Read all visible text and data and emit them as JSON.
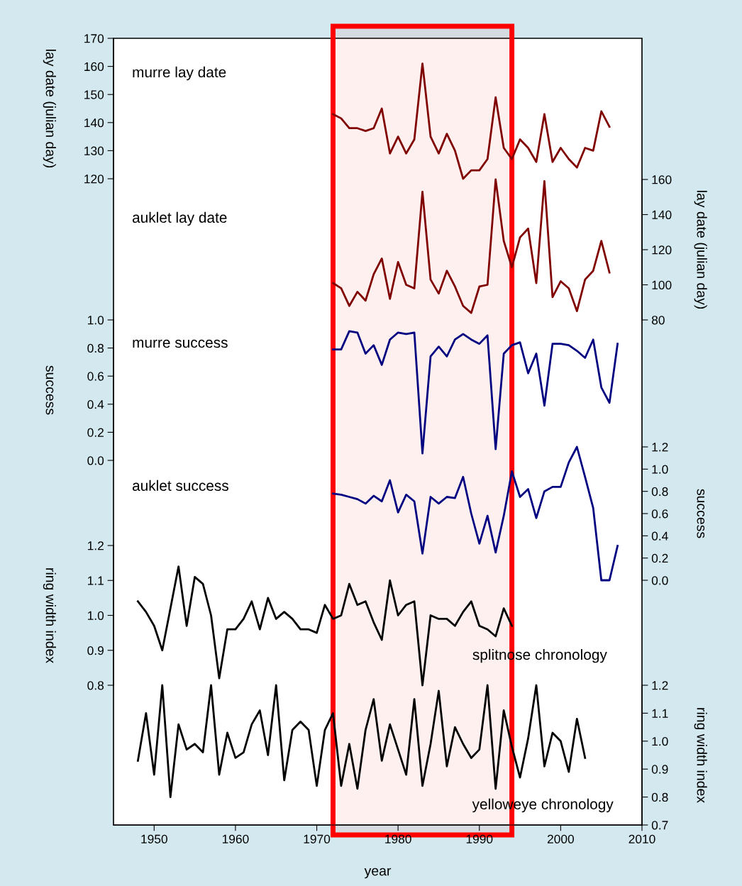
{
  "chart_data": [
    {
      "type": "line",
      "ylabel": "lay date (julian day)",
      "annotations": [
        "murre lay date"
      ],
      "color": "#800000",
      "xlim": [
        1945,
        2010
      ],
      "ylim": [
        120,
        170
      ],
      "yticks": [
        120,
        130,
        140,
        150,
        160,
        170
      ],
      "tick_labels": "y",
      "x": [
        1972,
        1973,
        1974,
        1975,
        1976,
        1977,
        1978,
        1979,
        1980,
        1981,
        1982,
        1983,
        1984,
        1985,
        1986,
        1987,
        1988,
        1989,
        1990,
        1991,
        1992,
        1993,
        1994,
        1995,
        1996,
        1997,
        1998,
        1999,
        2000,
        2001,
        2002,
        2003,
        2004,
        2005,
        2006
      ],
      "values": [
        143,
        141.5,
        138,
        138,
        137,
        138,
        145,
        129,
        135,
        129,
        134,
        161,
        135,
        129,
        136,
        130,
        120,
        123,
        123,
        127,
        149,
        131,
        127,
        134,
        131,
        126,
        143,
        126,
        131,
        127,
        124,
        131,
        130,
        144,
        138.5
      ]
    },
    {
      "type": "line",
      "ylabel": "lay date (julian day)",
      "annotations": [
        "auklet lay date"
      ],
      "color": "#800000",
      "xlim": [
        1945,
        2010
      ],
      "ylim": [
        80,
        160
      ],
      "yticks": [
        80,
        100,
        120,
        140,
        160
      ],
      "tick_labels": "y",
      "x": [
        1972,
        1973,
        1974,
        1975,
        1976,
        1977,
        1978,
        1979,
        1980,
        1981,
        1982,
        1983,
        1984,
        1985,
        1986,
        1987,
        1988,
        1989,
        1990,
        1991,
        1992,
        1993,
        1994,
        1995,
        1996,
        1997,
        1998,
        1999,
        2000,
        2001,
        2002,
        2003,
        2004,
        2005,
        2006
      ],
      "values": [
        101,
        98,
        88,
        96,
        91,
        106,
        115,
        92,
        113,
        100,
        98,
        153,
        103,
        95,
        108,
        99,
        88,
        84,
        99,
        100,
        160,
        125,
        110,
        127,
        132,
        101,
        159,
        93,
        102,
        98,
        85,
        103,
        108,
        125,
        107
      ]
    },
    {
      "type": "line",
      "ylabel": "success",
      "annotations": [
        "murre success"
      ],
      "color": "#000080",
      "xlim": [
        1945,
        2010
      ],
      "ylim": [
        0,
        1
      ],
      "yticks": [
        {
          "value": 0,
          "label": "0.0"
        },
        0.2,
        0.4,
        0.6,
        0.8,
        {
          "value": 1,
          "label": "1.0"
        }
      ],
      "tick_labels": "y",
      "x": [
        1972,
        1973,
        1974,
        1975,
        1976,
        1977,
        1978,
        1979,
        1980,
        1981,
        1982,
        1983,
        1984,
        1985,
        1986,
        1987,
        1988,
        1989,
        1990,
        1991,
        1992,
        1993,
        1994,
        1995,
        1996,
        1997,
        1998,
        1999,
        2000,
        2001,
        2002,
        2003,
        2004,
        2005,
        2006,
        2007
      ],
      "values": [
        0.79,
        0.79,
        0.92,
        0.91,
        0.76,
        0.82,
        0.68,
        0.86,
        0.91,
        0.9,
        0.91,
        0.05,
        0.74,
        0.81,
        0.74,
        0.86,
        0.9,
        0.86,
        0.83,
        0.89,
        0.08,
        0.76,
        0.82,
        0.84,
        0.62,
        0.76,
        0.39,
        0.83,
        0.83,
        0.82,
        0.78,
        0.73,
        0.86,
        0.52,
        0.41,
        0.83
      ]
    },
    {
      "type": "line",
      "ylabel": "success",
      "annotations": [
        "auklet success"
      ],
      "color": "#000080",
      "xlim": [
        1945,
        2010
      ],
      "ylim": [
        0,
        1.2
      ],
      "yticks": [
        {
          "value": 0,
          "label": "0.0"
        },
        0.2,
        0.4,
        0.6,
        0.8,
        {
          "value": 1,
          "label": "1.0"
        },
        1.2
      ],
      "tick_labels": "y",
      "x": [
        1972,
        1973,
        1974,
        1975,
        1976,
        1977,
        1978,
        1979,
        1980,
        1981,
        1982,
        1983,
        1984,
        1985,
        1986,
        1987,
        1988,
        1989,
        1990,
        1991,
        1992,
        1993,
        1994,
        1995,
        1996,
        1997,
        1998,
        1999,
        2000,
        2001,
        2002,
        2003,
        2004,
        2005,
        2006,
        2007
      ],
      "values": [
        0.78,
        0.77,
        0.75,
        0.73,
        0.69,
        0.76,
        0.71,
        0.9,
        0.61,
        0.77,
        0.71,
        0.24,
        0.75,
        0.69,
        0.75,
        0.74,
        0.93,
        0.6,
        0.33,
        0.58,
        0.25,
        0.58,
        0.98,
        0.75,
        0.82,
        0.56,
        0.8,
        0.84,
        0.84,
        1.06,
        1.2,
        0.93,
        0.65,
        0,
        0,
        0.31
      ]
    },
    {
      "type": "line",
      "ylabel": "ring width index",
      "annotations": [
        "splitnose chronology"
      ],
      "color": "#000000",
      "xlim": [
        1945,
        2010
      ],
      "ylim": [
        0.8,
        1.2
      ],
      "yticks": [
        0.8,
        0.9,
        {
          "value": 1,
          "label": "1.0"
        },
        1.1,
        1.2
      ],
      "tick_labels": "y",
      "x": [
        1948,
        1949,
        1950,
        1951,
        1952,
        1953,
        1954,
        1955,
        1956,
        1957,
        1958,
        1959,
        1960,
        1961,
        1962,
        1963,
        1964,
        1965,
        1966,
        1967,
        1968,
        1969,
        1970,
        1971,
        1972,
        1973,
        1974,
        1975,
        1976,
        1977,
        1978,
        1979,
        1980,
        1981,
        1982,
        1983,
        1984,
        1985,
        1986,
        1987,
        1988,
        1989,
        1990,
        1991,
        1992,
        1993,
        1994
      ],
      "values": [
        1.04,
        1.01,
        0.97,
        0.9,
        1.02,
        1.14,
        0.97,
        1.11,
        1.09,
        1.0,
        0.82,
        0.96,
        0.96,
        0.99,
        1.04,
        0.96,
        1.05,
        0.99,
        1.01,
        0.99,
        0.96,
        0.96,
        0.95,
        1.03,
        0.99,
        1.0,
        1.09,
        1.03,
        1.04,
        0.98,
        0.93,
        1.1,
        1.0,
        1.03,
        1.04,
        0.8,
        1.0,
        0.99,
        0.99,
        0.97,
        1.01,
        1.04,
        0.97,
        0.96,
        0.94,
        1.02,
        0.97
      ]
    },
    {
      "type": "line",
      "ylabel": "ring width index",
      "xlabel": "year",
      "annotations": [
        "yelloweye chronology"
      ],
      "color": "#000000",
      "xlim": [
        1945,
        2010
      ],
      "xticks": [
        1950,
        1960,
        1970,
        1980,
        1990,
        2000,
        2010
      ],
      "ylim": [
        0.7,
        1.2
      ],
      "yticks": [
        {
          "value": 0.7,
          "label": "0.7"
        },
        0.8,
        0.9,
        {
          "value": 1,
          "label": "1.0"
        },
        1.1,
        1.2
      ],
      "bands": [
        {
          "axis": "x",
          "from": 1972,
          "to": 1994,
          "color": "#ff0000"
        }
      ],
      "x": [
        1948,
        1949,
        1950,
        1951,
        1952,
        1953,
        1954,
        1955,
        1956,
        1957,
        1958,
        1959,
        1960,
        1961,
        1962,
        1963,
        1964,
        1965,
        1966,
        1967,
        1968,
        1969,
        1970,
        1971,
        1972,
        1973,
        1974,
        1975,
        1976,
        1977,
        1978,
        1979,
        1980,
        1981,
        1982,
        1983,
        1984,
        1985,
        1986,
        1987,
        1988,
        1989,
        1990,
        1991,
        1992,
        1993,
        1994,
        1995,
        1996,
        1997,
        1998,
        1999,
        2000,
        2001,
        2002,
        2003
      ],
      "values": [
        0.93,
        1.1,
        0.88,
        1.2,
        0.8,
        1.06,
        0.97,
        0.99,
        0.96,
        1.2,
        0.88,
        1.03,
        0.94,
        0.96,
        1.06,
        1.11,
        0.95,
        1.2,
        0.86,
        1.04,
        1.07,
        1.04,
        0.84,
        1.04,
        1.1,
        0.84,
        0.99,
        0.83,
        1.04,
        1.15,
        0.93,
        1.06,
        0.97,
        0.88,
        1.15,
        0.84,
        0.99,
        1.18,
        0.91,
        1.05,
        0.99,
        0.94,
        0.97,
        1.2,
        0.83,
        1.11,
        0.98,
        0.87,
        1.01,
        1.2,
        0.91,
        1.03,
        1.0,
        0.89,
        1.08,
        0.94
      ]
    }
  ]
}
